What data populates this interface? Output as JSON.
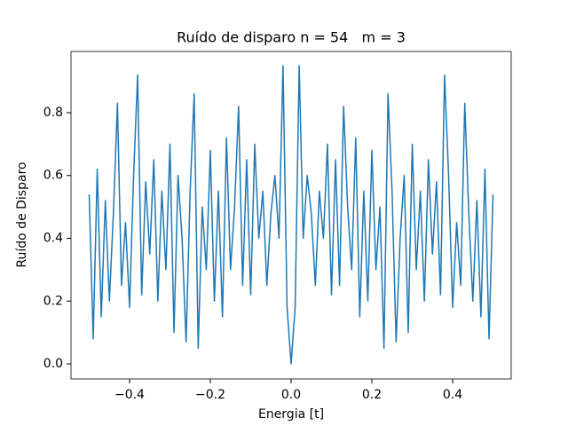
{
  "chart_data": {
    "type": "line",
    "title": "Ruído de disparo n = 54   m = 3",
    "x_label": "Energia [t]",
    "y_label": "Ruído de Disparo",
    "color": "#1f77b4",
    "xlim": [
      -0.545,
      0.545
    ],
    "ylim": [
      -0.048,
      0.995
    ],
    "xticks": [
      {
        "value": -0.4,
        "label": "−0.4"
      },
      {
        "value": -0.2,
        "label": "−0.2"
      },
      {
        "value": 0,
        "label": "0.0"
      },
      0.2,
      0.4
    ],
    "yticks": [
      {
        "value": 0,
        "label": "0.0"
      },
      0.2,
      0.4,
      0.6,
      0.8
    ],
    "x": [
      -0.5,
      -0.49,
      -0.48,
      -0.47,
      -0.46,
      -0.45,
      -0.44,
      -0.43,
      -0.42,
      -0.41,
      -0.4,
      -0.39,
      -0.38,
      -0.37,
      -0.36,
      -0.35,
      -0.34,
      -0.33,
      -0.32,
      -0.31,
      -0.3,
      -0.29,
      -0.28,
      -0.27,
      -0.26,
      -0.25,
      -0.24,
      -0.23,
      -0.22,
      -0.21,
      -0.2,
      -0.19,
      -0.18,
      -0.17,
      -0.16,
      -0.15,
      -0.14,
      -0.13,
      -0.12,
      -0.11,
      -0.1,
      -0.09,
      -0.08,
      -0.07,
      -0.06,
      -0.05,
      -0.04,
      -0.03,
      -0.02,
      -0.01,
      0.0,
      0.01,
      0.02,
      0.03,
      0.04,
      0.05,
      0.06,
      0.07,
      0.08,
      0.09,
      0.1,
      0.11,
      0.12,
      0.13,
      0.14,
      0.15,
      0.16,
      0.17,
      0.18,
      0.19,
      0.2,
      0.21,
      0.22,
      0.23,
      0.24,
      0.25,
      0.26,
      0.27,
      0.28,
      0.29,
      0.3,
      0.31,
      0.32,
      0.33,
      0.34,
      0.35,
      0.36,
      0.37,
      0.38,
      0.39,
      0.4,
      0.41,
      0.42,
      0.43,
      0.44,
      0.45,
      0.46,
      0.47,
      0.48,
      0.49,
      0.5
    ],
    "values": [
      0.54,
      0.08,
      0.62,
      0.15,
      0.52,
      0.2,
      0.48,
      0.83,
      0.25,
      0.45,
      0.18,
      0.6,
      0.92,
      0.22,
      0.58,
      0.35,
      0.65,
      0.2,
      0.55,
      0.3,
      0.7,
      0.1,
      0.6,
      0.4,
      0.07,
      0.55,
      0.86,
      0.05,
      0.5,
      0.3,
      0.68,
      0.2,
      0.55,
      0.15,
      0.72,
      0.3,
      0.5,
      0.82,
      0.25,
      0.65,
      0.22,
      0.7,
      0.4,
      0.55,
      0.25,
      0.48,
      0.6,
      0.4,
      0.95,
      0.18,
      0.0,
      0.18,
      0.95,
      0.4,
      0.6,
      0.48,
      0.25,
      0.55,
      0.4,
      0.7,
      0.22,
      0.65,
      0.25,
      0.82,
      0.5,
      0.3,
      0.72,
      0.15,
      0.55,
      0.2,
      0.68,
      0.3,
      0.5,
      0.05,
      0.86,
      0.55,
      0.07,
      0.4,
      0.6,
      0.1,
      0.7,
      0.3,
      0.55,
      0.2,
      0.65,
      0.35,
      0.58,
      0.22,
      0.92,
      0.6,
      0.18,
      0.45,
      0.25,
      0.83,
      0.48,
      0.2,
      0.52,
      0.15,
      0.62,
      0.08,
      0.54
    ]
  }
}
